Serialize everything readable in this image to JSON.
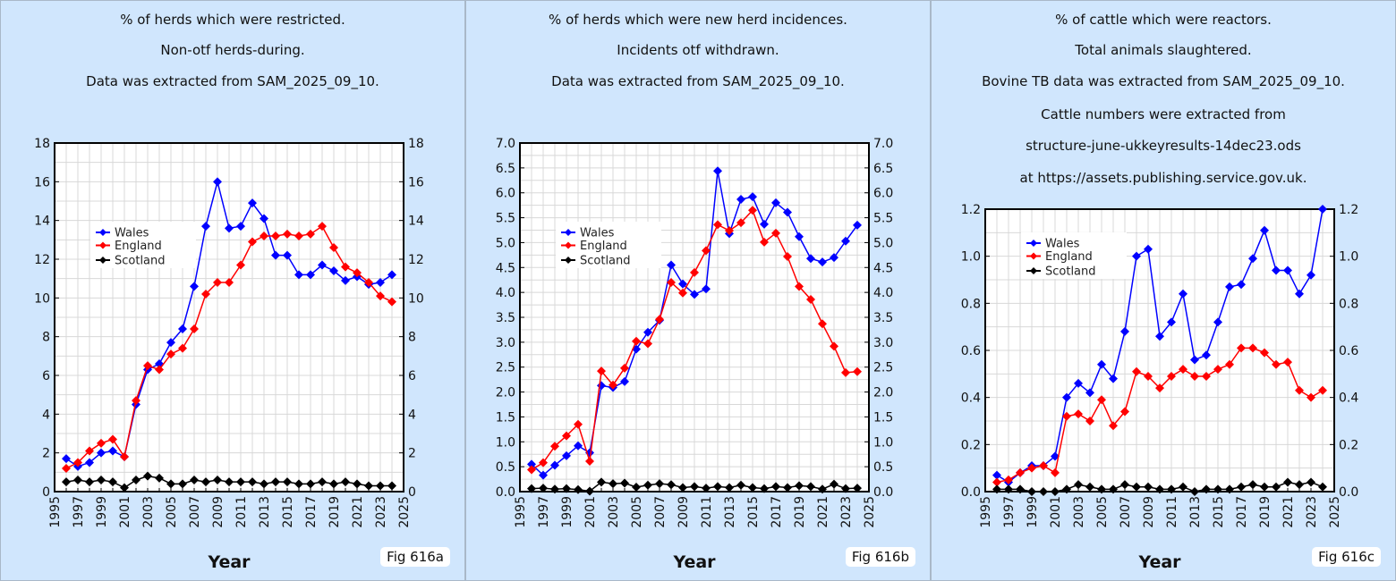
{
  "chart_data": [
    {
      "type": "line",
      "titles": [
        "% of herds which were restricted.",
        "Non-otf herds-during.",
        "Data was extracted from SAM_2025_09_10."
      ],
      "xlabel": "Year",
      "ylabel": "",
      "fig_label": "Fig 616a",
      "xlim": [
        1995,
        2025
      ],
      "ylim": [
        0,
        18
      ],
      "xticks": [
        "1995",
        "1997",
        "1999",
        "2001",
        "2003",
        "2005",
        "2007",
        "2009",
        "2011",
        "2013",
        "2015",
        "2017",
        "2019",
        "2021",
        "2023",
        "2025"
      ],
      "yticks": [
        "0",
        "2",
        "4",
        "6",
        "8",
        "10",
        "12",
        "14",
        "16",
        "18"
      ],
      "ytick_step": 2,
      "ygrid_step": 1,
      "grid": true,
      "legend_position": "upper-left",
      "x": [
        1996,
        1997,
        1998,
        1999,
        2000,
        2001,
        2002,
        2003,
        2004,
        2005,
        2006,
        2007,
        2008,
        2009,
        2010,
        2011,
        2012,
        2013,
        2014,
        2015,
        2016,
        2017,
        2018,
        2019,
        2020,
        2021,
        2022,
        2023,
        2024
      ],
      "series": [
        {
          "name": "Wales",
          "color": "#0000ff",
          "values": [
            1.7,
            1.3,
            1.5,
            2.0,
            2.1,
            1.8,
            4.5,
            6.3,
            6.6,
            7.7,
            8.4,
            10.6,
            13.7,
            16.0,
            13.6,
            13.7,
            14.9,
            14.1,
            12.2,
            12.2,
            11.2,
            11.2,
            11.7,
            11.4,
            10.9,
            11.1,
            10.7,
            10.8,
            11.2
          ]
        },
        {
          "name": "England",
          "color": "#ff0000",
          "values": [
            1.2,
            1.5,
            2.1,
            2.5,
            2.7,
            1.8,
            4.7,
            6.5,
            6.3,
            7.1,
            7.4,
            8.4,
            10.2,
            10.8,
            10.8,
            11.7,
            12.9,
            13.2,
            13.2,
            13.3,
            13.2,
            13.3,
            13.7,
            12.6,
            11.6,
            11.3,
            10.8,
            10.1,
            9.8
          ]
        },
        {
          "name": "Scotland",
          "color": "#000000",
          "values": [
            0.5,
            0.6,
            0.5,
            0.6,
            0.5,
            0.2,
            0.6,
            0.8,
            0.7,
            0.4,
            0.4,
            0.6,
            0.5,
            0.6,
            0.5,
            0.5,
            0.5,
            0.4,
            0.5,
            0.5,
            0.4,
            0.4,
            0.5,
            0.4,
            0.5,
            0.4,
            0.3,
            0.3,
            0.3
          ]
        }
      ]
    },
    {
      "type": "line",
      "titles": [
        "% of herds which were new herd incidences.",
        "Incidents otf withdrawn.",
        "Data was extracted from SAM_2025_09_10."
      ],
      "xlabel": "Year",
      "ylabel": "",
      "fig_label": "Fig 616b",
      "xlim": [
        1995,
        2025
      ],
      "ylim": [
        0,
        7
      ],
      "xticks": [
        "1995",
        "1997",
        "1999",
        "2001",
        "2003",
        "2005",
        "2007",
        "2009",
        "2011",
        "2013",
        "2015",
        "2017",
        "2019",
        "2021",
        "2023",
        "2025"
      ],
      "yticks": [
        "0.0",
        "0.5",
        "1.0",
        "1.5",
        "2.0",
        "2.5",
        "3.0",
        "3.5",
        "4.0",
        "4.5",
        "5.0",
        "5.5",
        "6.0",
        "6.5",
        "7.0"
      ],
      "ytick_step": 0.5,
      "ygrid_step": 0.25,
      "grid": true,
      "legend_position": "upper-left",
      "x": [
        1996,
        1997,
        1998,
        1999,
        2000,
        2001,
        2002,
        2003,
        2004,
        2005,
        2006,
        2007,
        2008,
        2009,
        2010,
        2011,
        2012,
        2013,
        2014,
        2015,
        2016,
        2017,
        2018,
        2019,
        2020,
        2021,
        2022,
        2023,
        2024
      ],
      "series": [
        {
          "name": "Wales",
          "color": "#0000ff",
          "values": [
            0.55,
            0.33,
            0.53,
            0.72,
            0.92,
            0.78,
            2.13,
            2.09,
            2.21,
            2.86,
            3.2,
            3.44,
            4.55,
            4.17,
            3.96,
            4.07,
            6.44,
            5.18,
            5.87,
            5.92,
            5.37,
            5.8,
            5.61,
            5.12,
            4.68,
            4.61,
            4.7,
            5.03,
            5.35
          ]
        },
        {
          "name": "England",
          "color": "#ff0000",
          "values": [
            0.44,
            0.58,
            0.91,
            1.12,
            1.35,
            0.61,
            2.42,
            2.14,
            2.48,
            3.02,
            2.97,
            3.46,
            4.2,
            3.99,
            4.4,
            4.84,
            5.36,
            5.24,
            5.4,
            5.65,
            5.01,
            5.19,
            4.72,
            4.12,
            3.86,
            3.37,
            2.92,
            2.39,
            2.41
          ]
        },
        {
          "name": "Scotland",
          "color": "#000000",
          "values": [
            0.06,
            0.07,
            0.05,
            0.06,
            0.04,
            0.01,
            0.19,
            0.16,
            0.17,
            0.09,
            0.13,
            0.16,
            0.14,
            0.08,
            0.1,
            0.07,
            0.1,
            0.08,
            0.13,
            0.08,
            0.06,
            0.1,
            0.08,
            0.12,
            0.1,
            0.05,
            0.15,
            0.06,
            0.07
          ]
        }
      ]
    },
    {
      "type": "line",
      "titles": [
        "% of cattle which were reactors.",
        "Total animals slaughtered.",
        "Bovine TB data was extracted from SAM_2025_09_10.",
        "Cattle numbers were extracted from",
        "structure-june-ukkeyresults-14dec23.ods",
        "at https://assets.publishing.service.gov.uk."
      ],
      "xlabel": "Year",
      "ylabel": "",
      "fig_label": "Fig 616c",
      "xlim": [
        1995,
        2025
      ],
      "ylim": [
        0,
        1.2
      ],
      "xticks": [
        "1995",
        "1997",
        "1999",
        "2001",
        "2003",
        "2005",
        "2007",
        "2009",
        "2011",
        "2013",
        "2015",
        "2017",
        "2019",
        "2021",
        "2023",
        "2025"
      ],
      "yticks": [
        "0.0",
        "0.2",
        "0.4",
        "0.6",
        "0.8",
        "1.0",
        "1.2"
      ],
      "ytick_step": 0.2,
      "ygrid_step": 0.1,
      "grid": true,
      "legend_position": "upper-left",
      "x": [
        1996,
        1997,
        1998,
        1999,
        2000,
        2001,
        2002,
        2003,
        2004,
        2005,
        2006,
        2007,
        2008,
        2009,
        2010,
        2011,
        2012,
        2013,
        2014,
        2015,
        2016,
        2017,
        2018,
        2019,
        2020,
        2021,
        2022,
        2023,
        2024
      ],
      "series": [
        {
          "name": "Wales",
          "color": "#0000ff",
          "values": [
            0.07,
            0.04,
            0.08,
            0.11,
            0.11,
            0.15,
            0.4,
            0.46,
            0.42,
            0.54,
            0.48,
            0.68,
            1.0,
            1.03,
            0.66,
            0.72,
            0.84,
            0.56,
            0.58,
            0.72,
            0.87,
            0.88,
            0.99,
            1.11,
            0.94,
            0.94,
            0.84,
            0.92,
            1.2
          ]
        },
        {
          "name": "England",
          "color": "#ff0000",
          "values": [
            0.04,
            0.05,
            0.08,
            0.1,
            0.11,
            0.08,
            0.32,
            0.33,
            0.3,
            0.39,
            0.28,
            0.34,
            0.51,
            0.49,
            0.44,
            0.49,
            0.52,
            0.49,
            0.49,
            0.52,
            0.54,
            0.61,
            0.61,
            0.59,
            0.54,
            0.55,
            0.43,
            0.4,
            0.43
          ]
        },
        {
          "name": "Scotland",
          "color": "#000000",
          "values": [
            0.01,
            0.01,
            0.01,
            0.0,
            0.0,
            0.0,
            0.01,
            0.03,
            0.02,
            0.01,
            0.01,
            0.03,
            0.02,
            0.02,
            0.01,
            0.01,
            0.02,
            0.0,
            0.01,
            0.01,
            0.01,
            0.02,
            0.03,
            0.02,
            0.02,
            0.04,
            0.03,
            0.04,
            0.02
          ]
        }
      ]
    }
  ]
}
